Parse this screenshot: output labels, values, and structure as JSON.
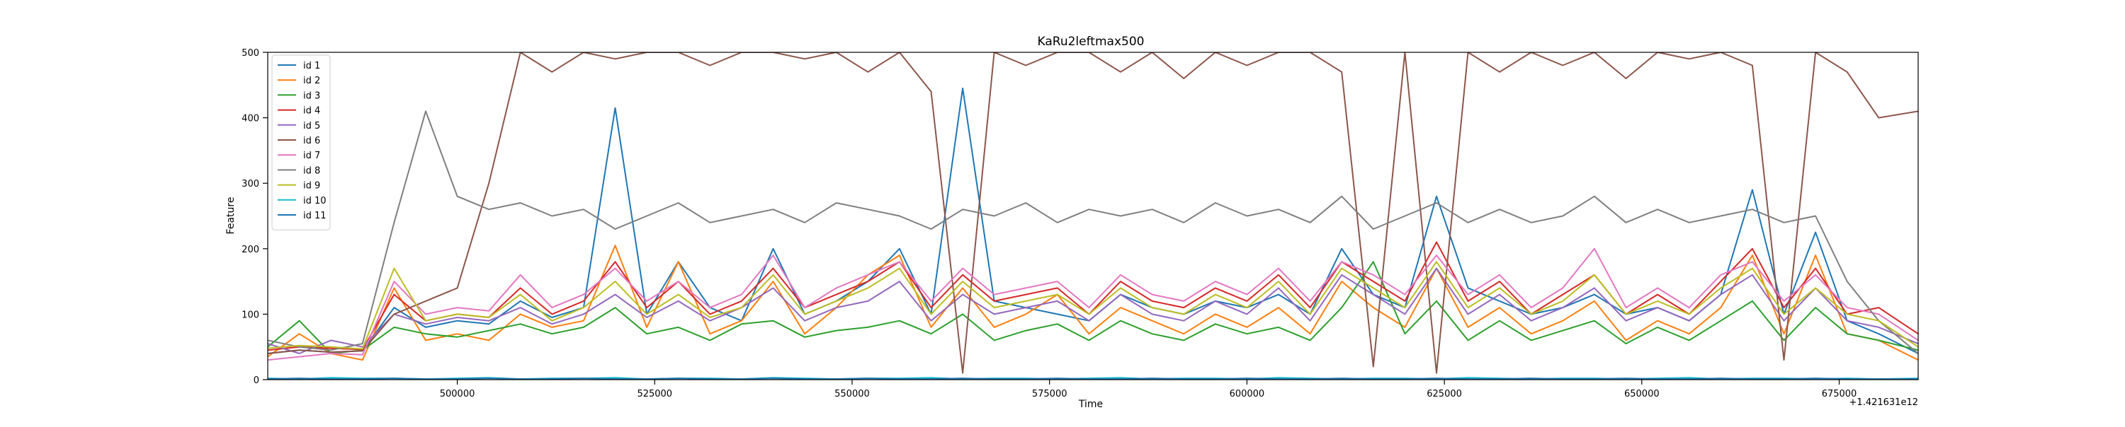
{
  "chart_data": {
    "type": "line",
    "title": "KaRu2leftmax500",
    "xlabel": "Time",
    "ylabel": "Feature",
    "x_offset_label": "+1.421631e12",
    "xlim": [
      476000,
      685000
    ],
    "ylim": [
      0,
      500
    ],
    "x_ticks": [
      500000,
      525000,
      550000,
      575000,
      600000,
      625000,
      650000,
      675000
    ],
    "y_ticks": [
      0,
      100,
      200,
      300,
      400,
      500
    ],
    "grid": false,
    "legend_position": "upper-left",
    "x": [
      476000,
      480000,
      484000,
      488000,
      492000,
      496000,
      500000,
      504000,
      508000,
      512000,
      516000,
      520000,
      524000,
      528000,
      532000,
      536000,
      540000,
      544000,
      548000,
      552000,
      556000,
      560000,
      564000,
      568000,
      572000,
      576000,
      580000,
      584000,
      588000,
      592000,
      596000,
      600000,
      604000,
      608000,
      612000,
      616000,
      620000,
      624000,
      628000,
      632000,
      636000,
      640000,
      644000,
      648000,
      652000,
      656000,
      660000,
      664000,
      668000,
      672000,
      676000,
      680000,
      685000
    ],
    "series": [
      {
        "name": "id 1",
        "color": "#1f77b4",
        "values": [
          40,
          45,
          42,
          44,
          110,
          80,
          90,
          85,
          120,
          95,
          110,
          415,
          100,
          180,
          110,
          90,
          200,
          100,
          120,
          150,
          200,
          100,
          445,
          120,
          110,
          100,
          90,
          130,
          110,
          100,
          120,
          110,
          130,
          100,
          200,
          130,
          110,
          280,
          140,
          120,
          100,
          110,
          130,
          100,
          110,
          90,
          130,
          290,
          100,
          225,
          90,
          70,
          40
        ]
      },
      {
        "name": "id 2",
        "color": "#ff7f0e",
        "values": [
          35,
          70,
          40,
          30,
          140,
          60,
          70,
          60,
          100,
          80,
          90,
          205,
          80,
          180,
          70,
          90,
          150,
          70,
          110,
          160,
          190,
          80,
          140,
          80,
          100,
          130,
          70,
          110,
          90,
          70,
          100,
          80,
          110,
          70,
          150,
          110,
          80,
          170,
          80,
          110,
          70,
          90,
          120,
          60,
          90,
          70,
          110,
          190,
          70,
          190,
          70,
          60,
          30
        ]
      },
      {
        "name": "id 3",
        "color": "#2ca02c",
        "values": [
          50,
          90,
          40,
          45,
          80,
          70,
          65,
          75,
          85,
          70,
          80,
          110,
          70,
          80,
          60,
          85,
          90,
          65,
          75,
          80,
          90,
          70,
          100,
          60,
          75,
          85,
          60,
          90,
          70,
          60,
          85,
          70,
          80,
          60,
          110,
          180,
          70,
          120,
          60,
          90,
          60,
          75,
          90,
          55,
          80,
          60,
          90,
          120,
          60,
          110,
          70,
          60,
          45
        ]
      },
      {
        "name": "id 4",
        "color": "#d62728",
        "values": [
          45,
          50,
          48,
          46,
          130,
          90,
          100,
          95,
          140,
          100,
          120,
          180,
          110,
          150,
          100,
          120,
          170,
          110,
          130,
          150,
          180,
          110,
          160,
          120,
          130,
          140,
          100,
          150,
          120,
          110,
          140,
          120,
          160,
          110,
          180,
          150,
          120,
          210,
          120,
          150,
          100,
          130,
          160,
          100,
          130,
          100,
          150,
          200,
          110,
          170,
          100,
          110,
          70
        ]
      },
      {
        "name": "id 5",
        "color": "#9467bd",
        "values": [
          55,
          40,
          60,
          50,
          100,
          85,
          95,
          90,
          110,
          85,
          100,
          130,
          95,
          120,
          90,
          110,
          140,
          90,
          110,
          120,
          150,
          90,
          130,
          100,
          110,
          120,
          90,
          130,
          100,
          90,
          120,
          100,
          140,
          90,
          160,
          130,
          100,
          170,
          100,
          130,
          90,
          110,
          140,
          90,
          110,
          90,
          130,
          160,
          90,
          140,
          90,
          80,
          55
        ]
      },
      {
        "name": "id 6",
        "color": "#8c564b",
        "values": [
          40,
          45,
          42,
          44,
          100,
          120,
          140,
          300,
          500,
          470,
          500,
          490,
          500,
          500,
          480,
          500,
          500,
          490,
          500,
          470,
          500,
          440,
          10,
          500,
          480,
          500,
          500,
          470,
          500,
          460,
          500,
          480,
          500,
          500,
          470,
          20,
          500,
          10,
          500,
          470,
          500,
          480,
          500,
          460,
          500,
          490,
          500,
          480,
          30,
          500,
          470,
          400,
          410
        ]
      },
      {
        "name": "id 7",
        "color": "#e377c2",
        "values": [
          30,
          35,
          40,
          38,
          150,
          100,
          110,
          105,
          160,
          110,
          130,
          170,
          120,
          150,
          110,
          130,
          190,
          110,
          140,
          160,
          180,
          120,
          170,
          130,
          140,
          150,
          110,
          160,
          130,
          120,
          150,
          130,
          170,
          120,
          180,
          160,
          130,
          190,
          130,
          160,
          110,
          140,
          200,
          110,
          140,
          110,
          160,
          180,
          120,
          160,
          110,
          100,
          60
        ]
      },
      {
        "name": "id 8",
        "color": "#7f7f7f",
        "values": [
          60,
          50,
          45,
          55,
          240,
          410,
          280,
          260,
          270,
          250,
          260,
          230,
          250,
          270,
          240,
          250,
          260,
          240,
          270,
          260,
          250,
          230,
          260,
          250,
          270,
          240,
          260,
          250,
          260,
          240,
          270,
          250,
          260,
          240,
          280,
          230,
          250,
          270,
          240,
          260,
          240,
          250,
          280,
          240,
          260,
          240,
          250,
          260,
          240,
          250,
          150,
          90,
          40
        ]
      },
      {
        "name": "id 9",
        "color": "#bcbd22",
        "values": [
          48,
          52,
          50,
          47,
          170,
          90,
          100,
          95,
          130,
          90,
          110,
          150,
          100,
          130,
          95,
          110,
          160,
          100,
          120,
          140,
          170,
          100,
          150,
          110,
          120,
          130,
          100,
          140,
          110,
          100,
          130,
          110,
          150,
          100,
          170,
          140,
          110,
          180,
          110,
          140,
          100,
          120,
          160,
          100,
          120,
          100,
          140,
          170,
          100,
          140,
          100,
          90,
          50
        ]
      },
      {
        "name": "id 10",
        "color": "#17becf",
        "values": [
          2,
          1,
          3,
          2,
          2,
          1,
          2,
          3,
          1,
          2,
          2,
          3,
          1,
          2,
          2,
          1,
          3,
          2,
          1,
          2,
          2,
          3,
          1,
          2,
          2,
          1,
          2,
          3,
          1,
          2,
          2,
          1,
          3,
          2,
          1,
          2,
          2,
          1,
          3,
          2,
          1,
          2,
          2,
          1,
          2,
          3,
          1,
          2,
          2,
          1,
          2,
          1,
          2
        ]
      },
      {
        "name": "id 11",
        "color": "#1f77b4",
        "values": [
          1,
          2,
          1,
          1,
          2,
          1,
          1,
          2,
          1,
          1,
          2,
          1,
          1,
          2,
          1,
          1,
          2,
          1,
          1,
          2,
          1,
          1,
          2,
          1,
          1,
          2,
          1,
          1,
          2,
          1,
          1,
          2,
          1,
          1,
          2,
          1,
          1,
          2,
          1,
          1,
          2,
          1,
          1,
          2,
          1,
          1,
          2,
          1,
          1,
          2,
          1,
          1,
          1
        ]
      }
    ]
  }
}
